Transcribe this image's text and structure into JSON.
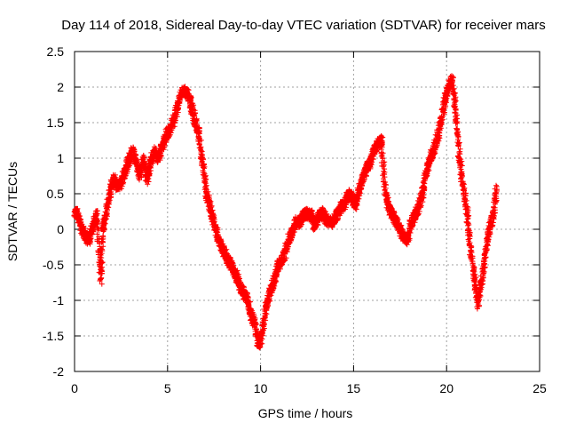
{
  "chart_data": {
    "type": "scatter",
    "title": "Day 114 of 2018, Sidereal Day-to-day VTEC variation (SDTVAR) for receiver mars",
    "xlabel": "GPS time / hours",
    "ylabel": "SDTVAR / TECUs",
    "xlim": [
      0,
      25
    ],
    "ylim": [
      -2,
      2.5
    ],
    "xticks": [
      0,
      5,
      10,
      15,
      20,
      25
    ],
    "xtick_labels": [
      "0",
      "5",
      "10",
      "15",
      "20",
      "25"
    ],
    "yticks": [
      2.5,
      2,
      1.5,
      1,
      0.5,
      0,
      -0.5,
      -1,
      -1.5,
      -2
    ],
    "ytick_labels": [
      "2.5",
      "2",
      "1.5",
      "1",
      "0.5",
      "0",
      "-0.5",
      "-1",
      "-1.5",
      "-2"
    ],
    "grid": true,
    "marker": "plus",
    "colors": {
      "series": "#ff0000",
      "grid": "#a0a0a0",
      "axis": "#000000"
    },
    "series": [
      {
        "name": "SDTVAR",
        "x": [
          0.0,
          0.2,
          0.4,
          0.6,
          0.8,
          1.0,
          1.2,
          1.4,
          1.5,
          1.7,
          1.9,
          2.1,
          2.3,
          2.5,
          2.7,
          2.9,
          3.1,
          3.3,
          3.5,
          3.7,
          3.9,
          4.1,
          4.3,
          4.5,
          4.7,
          4.9,
          5.1,
          5.3,
          5.5,
          5.7,
          5.9,
          6.1,
          6.3,
          6.5,
          6.7,
          6.9,
          7.1,
          7.3,
          7.5,
          7.7,
          7.9,
          8.1,
          8.3,
          8.5,
          8.7,
          8.9,
          9.1,
          9.3,
          9.5,
          9.7,
          9.9,
          10.1,
          10.3,
          10.5,
          10.7,
          10.9,
          11.1,
          11.3,
          11.5,
          11.7,
          11.9,
          12.1,
          12.3,
          12.5,
          12.7,
          12.9,
          13.1,
          13.3,
          13.5,
          13.7,
          13.9,
          14.1,
          14.3,
          14.5,
          14.7,
          14.9,
          15.1,
          15.3,
          15.5,
          15.7,
          15.9,
          16.1,
          16.3,
          16.5,
          16.7,
          16.9,
          17.1,
          17.3,
          17.5,
          17.7,
          17.9,
          18.1,
          18.3,
          18.5,
          18.7,
          18.9,
          19.1,
          19.3,
          19.5,
          19.7,
          19.9,
          20.1,
          20.3,
          20.5,
          20.7,
          20.9,
          21.1,
          21.3,
          21.5,
          21.7,
          21.9,
          22.1,
          22.3,
          22.5,
          22.7
        ],
        "y": [
          0.25,
          0.2,
          0.0,
          -0.1,
          -0.15,
          0.05,
          0.2,
          -0.7,
          0.0,
          0.2,
          0.5,
          0.72,
          0.6,
          0.65,
          0.8,
          0.95,
          1.1,
          0.95,
          0.75,
          1.0,
          0.7,
          0.95,
          1.1,
          1.0,
          1.15,
          1.3,
          1.4,
          1.5,
          1.7,
          1.9,
          1.95,
          1.9,
          1.7,
          1.5,
          1.3,
          0.9,
          0.5,
          0.3,
          0.1,
          -0.1,
          -0.25,
          -0.35,
          -0.45,
          -0.55,
          -0.65,
          -0.8,
          -0.9,
          -1.0,
          -1.2,
          -1.35,
          -1.65,
          -1.45,
          -1.1,
          -0.9,
          -0.75,
          -0.55,
          -0.45,
          -0.35,
          -0.15,
          -0.05,
          0.1,
          0.1,
          0.2,
          0.22,
          0.2,
          0.05,
          0.15,
          0.25,
          0.15,
          0.1,
          0.1,
          0.2,
          0.3,
          0.35,
          0.5,
          0.45,
          0.35,
          0.55,
          0.7,
          0.85,
          0.95,
          1.1,
          1.2,
          1.25,
          0.5,
          0.3,
          0.2,
          0.1,
          0.0,
          -0.1,
          -0.15,
          0.1,
          0.2,
          0.3,
          0.5,
          0.8,
          1.0,
          1.1,
          1.3,
          1.5,
          1.8,
          2.0,
          2.1,
          1.6,
          1.0,
          0.6,
          0.2,
          -0.3,
          -0.7,
          -1.05,
          -0.7,
          -0.3,
          0.0,
          0.2,
          0.6
        ]
      }
    ]
  }
}
